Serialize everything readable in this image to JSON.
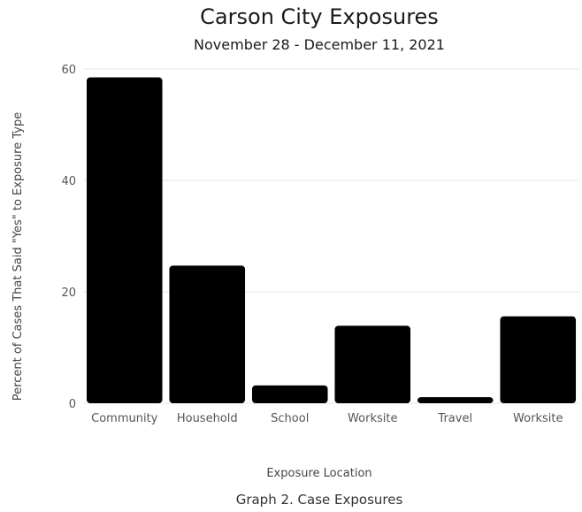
{
  "chart_data": {
    "type": "bar",
    "title": "Carson City Exposures",
    "subtitle": "November 28 - December 11, 2021",
    "xlabel": "Exposure Location",
    "ylabel": "Percent of Cases That Said \"Yes\" to Exposure Type",
    "categories": [
      "Community",
      "Household",
      "School",
      "Worksite",
      "Travel",
      "Worksite"
    ],
    "values": [
      58.5,
      24.7,
      3.2,
      13.9,
      1.1,
      15.6
    ],
    "ylim": [
      0,
      60
    ],
    "yticks": [
      0,
      20,
      40,
      60
    ],
    "grid": true,
    "bar_color": "#000000",
    "grid_color": "#e6e6e6"
  },
  "caption": "Graph 2. Case Exposures"
}
